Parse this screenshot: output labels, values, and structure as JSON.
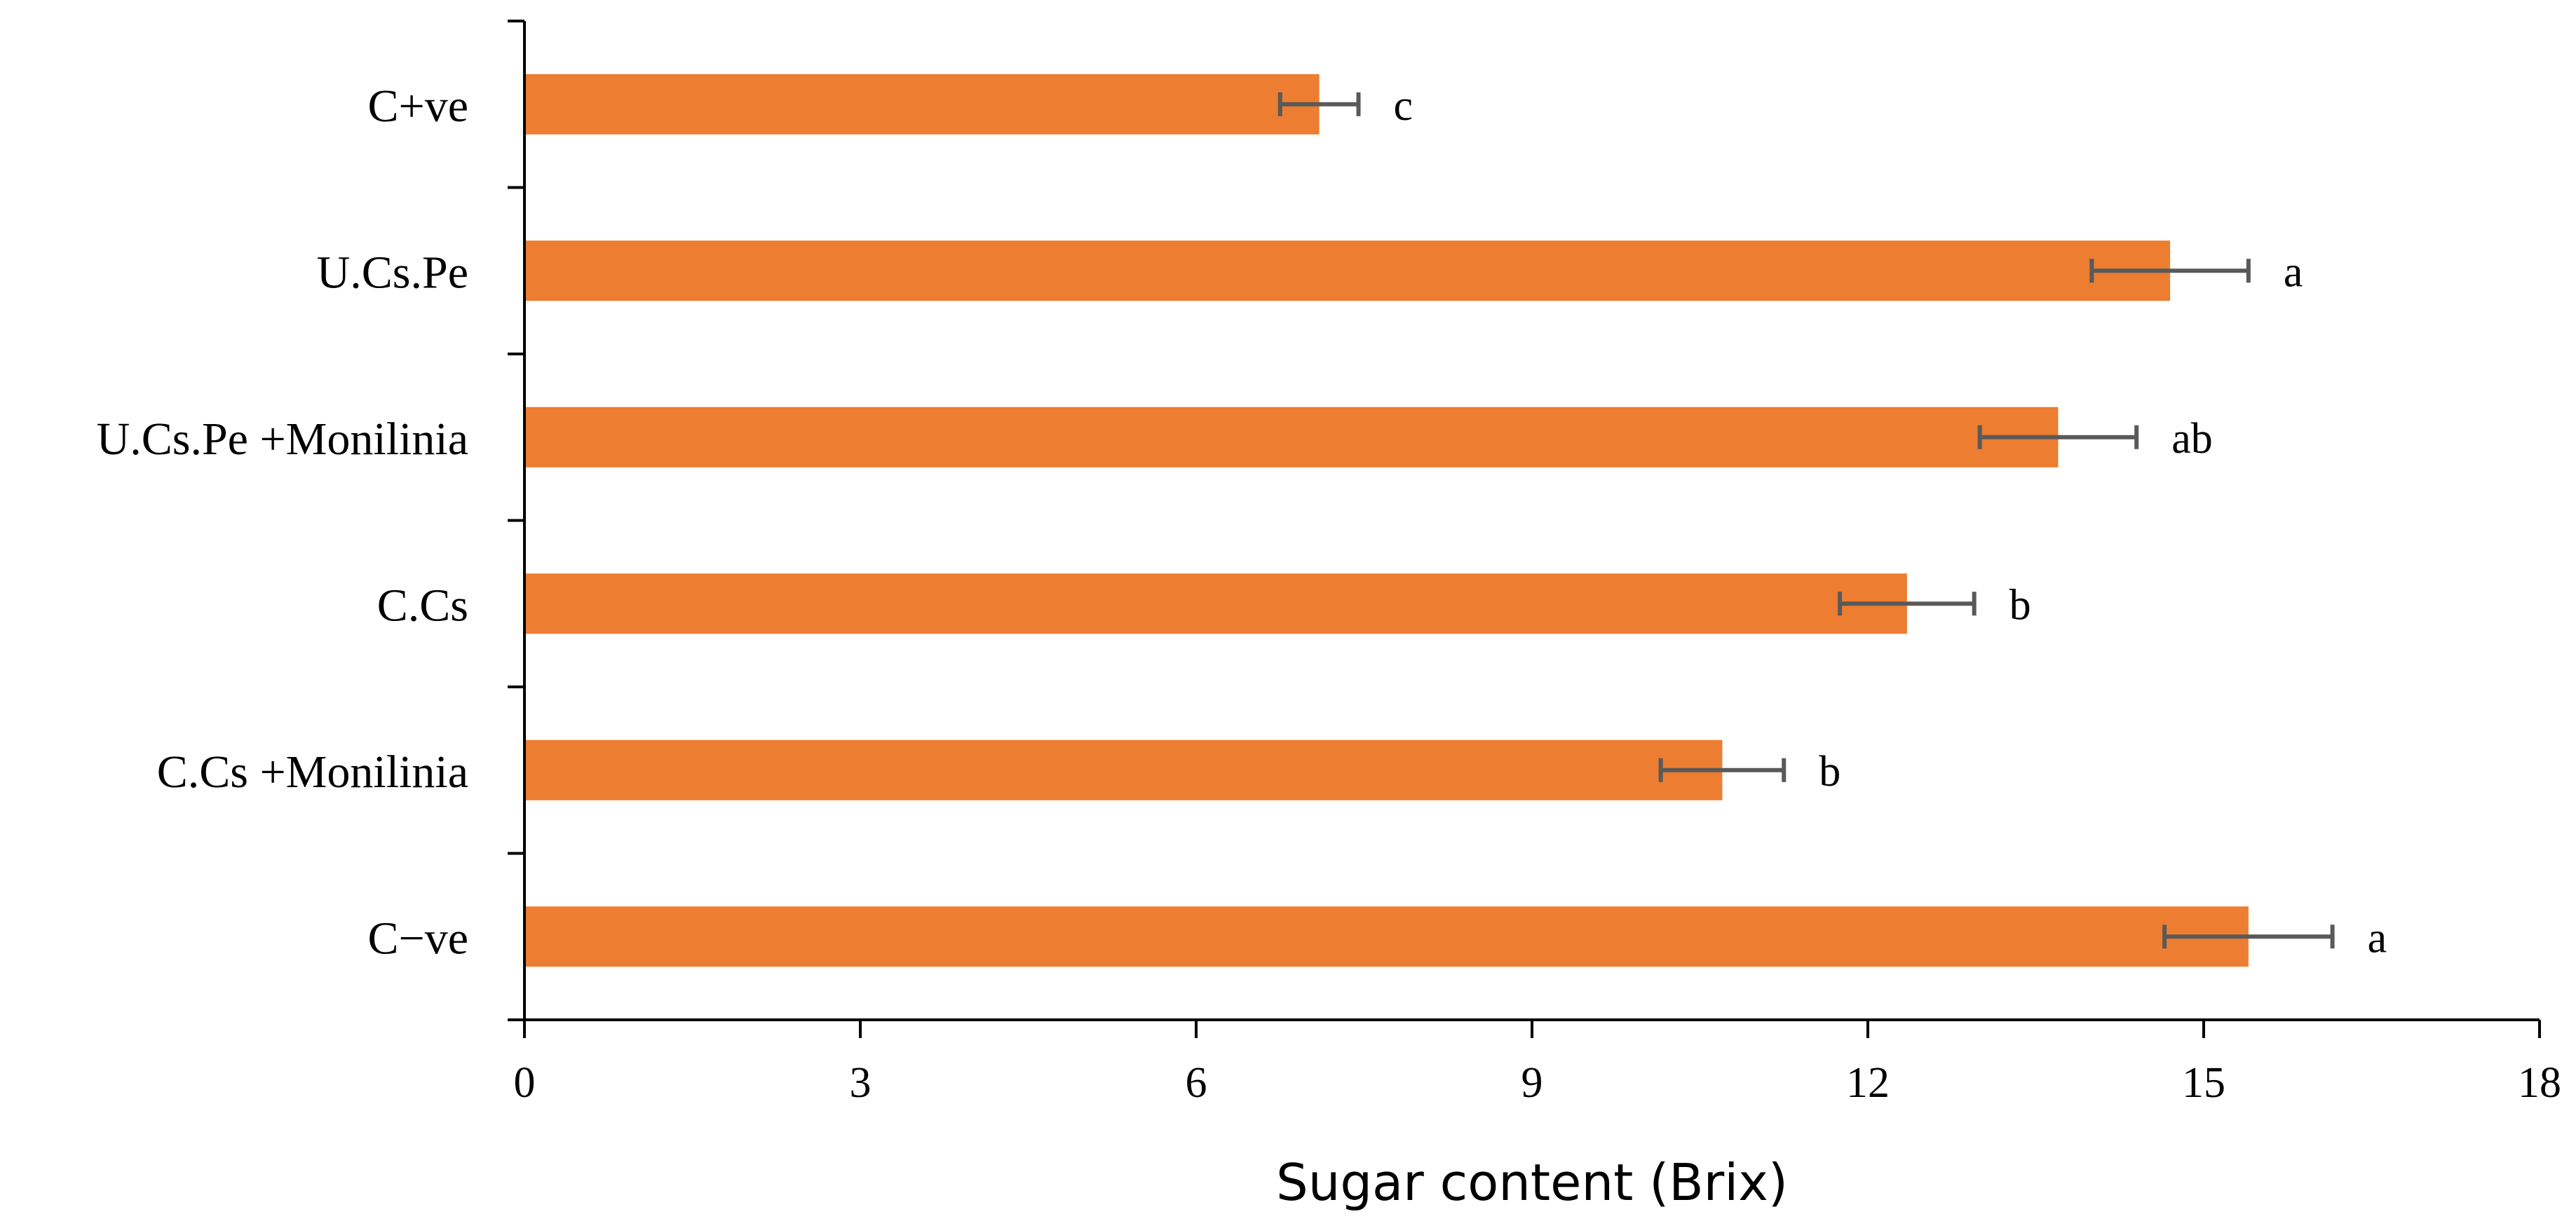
{
  "chart_data": {
    "type": "bar",
    "orientation": "horizontal",
    "title": "",
    "xlabel": "Sugar content (Brix)",
    "ylabel": "",
    "xlim": [
      0,
      18
    ],
    "xticks": [
      "0",
      "3",
      "6",
      "9",
      "12",
      "15",
      "18"
    ],
    "grid": false,
    "bar_color": "#ED7D31",
    "error_color": "#595959",
    "categories": [
      "C+ve",
      "U.Cs.Pe",
      "U.Cs.Pe +Monilinia",
      "C.Cs",
      "C.Cs +Monilinia",
      "C−ve"
    ],
    "values": [
      7.1,
      14.7,
      13.7,
      12.35,
      10.7,
      15.4
    ],
    "errors": [
      0.35,
      0.7,
      0.7,
      0.6,
      0.55,
      0.75
    ],
    "significance": [
      "c",
      "a",
      "ab",
      "b",
      "b",
      "a"
    ]
  }
}
